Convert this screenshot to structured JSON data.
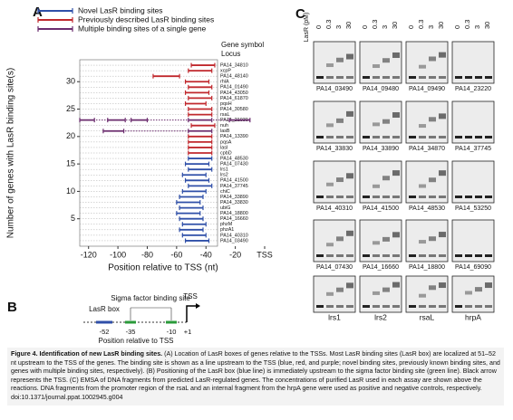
{
  "panel_labels": [
    "A",
    "B",
    "C"
  ],
  "chart_data": {
    "type": "interval",
    "xlabel": "Position relative to TSS (nt)",
    "ylabel": "Number of genes with LasR binding site(s)",
    "header": [
      "Gene symbol",
      "Locus"
    ],
    "categories": [
      "PA14_34810",
      "xcpP",
      "PA14_48140",
      "rhlA",
      "PA14_01490",
      "PA14_43050",
      "PA14_61870",
      "pqsH",
      "PA14_30580",
      "rsaL",
      "PA14_21030",
      "nuh",
      "lasB",
      "PA14_13390",
      "pqsA",
      "lasI",
      "cpbD",
      "PA14_48530",
      "PA14_07430",
      "lrs1",
      "lrs2",
      "PA14_41500",
      "PA14_37745",
      "chiC",
      "PA14_33890",
      "PA14_33830",
      "ubiG",
      "PA14_18800",
      "PA14_16660",
      "phzM",
      "phzA1",
      "PA14_40310",
      "PA14_03490"
    ],
    "series": [
      {
        "name": "Novel LasR binding sites",
        "color": "#2f4fa8",
        "values": [
          null,
          null,
          null,
          null,
          null,
          null,
          null,
          null,
          null,
          null,
          null,
          null,
          null,
          null,
          null,
          null,
          null,
          [
            [
              -52,
              -36
            ]
          ],
          [
            [
              -54,
              -38
            ]
          ],
          [
            [
              -52,
              -36
            ]
          ],
          [
            [
              -56,
              -40
            ]
          ],
          [
            [
              -54,
              -38
            ]
          ],
          [
            [
              -52,
              -36
            ]
          ],
          [
            [
              -56,
              -40
            ]
          ],
          [
            [
              -58,
              -42
            ]
          ],
          [
            [
              -60,
              -44
            ]
          ],
          [
            [
              -58,
              -42
            ]
          ],
          [
            [
              -60,
              -44
            ]
          ],
          [
            [
              -58,
              -42
            ]
          ],
          [
            [
              -56,
              -40
            ]
          ],
          [
            [
              -58,
              -42
            ]
          ],
          [
            [
              -56,
              -40
            ]
          ],
          [
            [
              -54,
              -38
            ]
          ]
        ]
      },
      {
        "name": "Previously described LasR binding sites",
        "color": "#c0282d",
        "values": [
          [
            [
              -50,
              -34
            ]
          ],
          [
            [
              -52,
              -36
            ]
          ],
          [
            [
              -76,
              -58
            ]
          ],
          [
            [
              -54,
              -38
            ]
          ],
          [
            [
              -52,
              -36
            ]
          ],
          [
            [
              -54,
              -38
            ]
          ],
          [
            [
              -52,
              -36
            ]
          ],
          [
            [
              -54,
              -40
            ]
          ],
          [
            [
              -52,
              -36
            ]
          ],
          [
            [
              -52,
              -36
            ]
          ],
          null,
          [
            [
              -50,
              -34
            ]
          ],
          null,
          [
            [
              -52,
              -36
            ]
          ],
          [
            [
              -52,
              -36
            ]
          ],
          [
            [
              -52,
              -36
            ]
          ],
          [
            [
              -52,
              -36
            ]
          ],
          null,
          null,
          null,
          null,
          null,
          null,
          null,
          null,
          null,
          null,
          null,
          null,
          null,
          null,
          null,
          null
        ]
      },
      {
        "name": "Multiple binding sites of a single gene",
        "color": "#6b2c6e",
        "values": [
          null,
          null,
          null,
          null,
          null,
          null,
          null,
          null,
          null,
          null,
          [
            [
              -126,
              -116
            ],
            [
              -107,
              -95
            ],
            [
              -91,
              -80
            ],
            [
              -52,
              -36
            ],
            [
              -24,
              -10
            ]
          ],
          null,
          [
            [
              -110,
              -96
            ],
            [
              -52,
              -36
            ]
          ],
          null,
          null,
          null,
          null,
          null,
          null,
          null,
          null,
          null,
          null,
          null,
          null,
          null,
          null,
          null,
          null,
          null,
          null,
          null,
          null
        ]
      }
    ],
    "xlim": [
      -126,
      0
    ],
    "xticks": [
      -120,
      -100,
      -80,
      -60,
      -40,
      -20,
      {
        "value": 0,
        "label": "TSS"
      }
    ],
    "ylim": [
      0,
      34
    ],
    "yticks": [
      5,
      10,
      15,
      20,
      25,
      30
    ],
    "grid": true
  },
  "diagram": {
    "lasr_box": "LasR box",
    "sigma": "Sigma factor binding site",
    "tss": "TSS",
    "positions": [
      "-52",
      "-35",
      "-10",
      "+1"
    ],
    "xlabel": "Position relative to TSS"
  },
  "gel": {
    "ylabel": "LasR (pM)",
    "concentrations": [
      "0",
      "0.3",
      "3",
      "30"
    ],
    "lanes": [
      [
        "PA14_03490",
        "PA14_09480",
        "PA14_09490",
        "PA14_23220"
      ],
      [
        "PA14_33830",
        "PA14_33890",
        "PA14_34870",
        "PA14_37745"
      ],
      [
        "PA14_40310",
        "PA14_41500",
        "PA14_48530",
        "PA14_53250"
      ],
      [
        "PA14_07430",
        "PA14_16660",
        "PA14_18800",
        "PA14_69090"
      ],
      [
        "lrs1",
        "lrs2",
        "rsaL",
        "hrpA"
      ]
    ]
  },
  "caption": {
    "title": "Figure 4. Identification of new LasR binding sites.",
    "body": "(A) Location of LasR boxes of genes relative to the TSSs. Most LasR binding sites (LasR box) are localized at 51–52 nt upstream to the TSS of the genes. The binding site is shown as a line upstream to the TSS (blue, red, and purple; novel binding sites, previously known binding sites, and genes with multiple binding sites, respectively). (B) Positioning of the LasR box (blue line) is immediately upstream to the sigma factor binding site (green line). Black arrow represents the TSS. (C) EMSA of DNA fragments from predicted LasR-regulated genes. The concentrations of purified LasR used in each assay are shown above the reactions. DNA fragments from the promoter region of the rsaL and an internal fragment from the hrpA gene were used as positive and negative controls, respectively.",
    "doi": "doi:10.1371/journal.ppat.1002945.g004"
  }
}
